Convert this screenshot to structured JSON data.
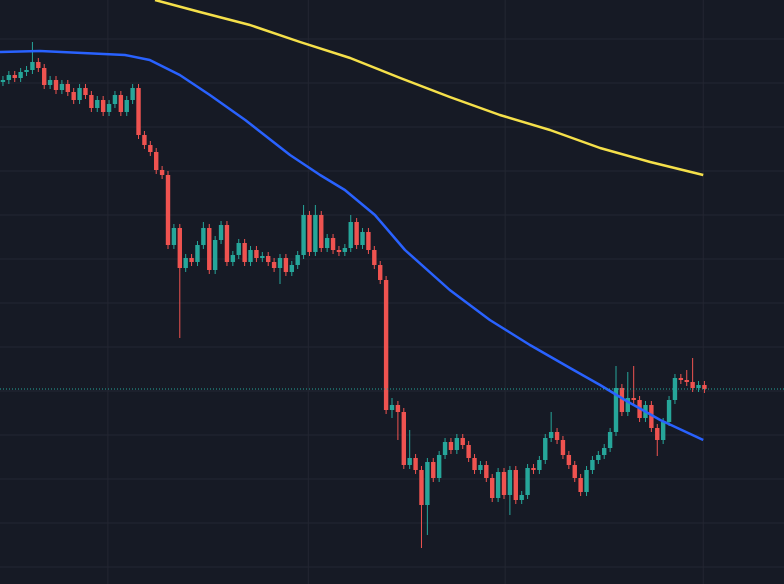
{
  "chart_data": {
    "type": "candlestick",
    "xlim": [
      -0.5,
      132.5
    ],
    "ylim": [
      0,
      584
    ],
    "xticks": [
      17.8,
      51.8,
      85.2,
      118.8
    ],
    "yticks": [
      17,
      61,
      105,
      149,
      193,
      237,
      281,
      325,
      369,
      413,
      457,
      501,
      545
    ],
    "grid": true,
    "background": "#161a25",
    "grid_color": "#232632",
    "up_color": "#26a69a",
    "down_color": "#ef5350",
    "price_line": 195,
    "price_line_color": "#26a69a",
    "open": [
      502,
      504,
      509,
      506,
      512,
      514,
      522,
      516,
      499,
      504,
      494,
      500,
      492,
      484,
      496,
      489,
      476,
      484,
      472,
      480,
      489,
      472,
      484,
      496,
      449,
      439,
      432,
      414,
      409,
      339,
      356,
      316,
      326,
      322,
      339,
      356,
      314,
      344,
      359,
      322,
      329,
      341,
      322,
      334,
      326,
      328,
      322,
      316,
      326,
      312,
      319,
      329,
      369,
      332,
      369,
      336,
      346,
      334,
      332,
      336,
      362,
      339,
      352,
      334,
      319,
      304,
      174,
      179,
      172,
      119,
      126,
      114,
      79,
      122,
      106,
      129,
      142,
      134,
      146,
      139,
      126,
      114,
      119,
      106,
      86,
      112,
      89,
      114,
      84,
      89,
      116,
      114,
      124,
      146,
      152,
      144,
      129,
      119,
      106,
      92,
      114,
      124,
      129,
      136,
      152,
      196,
      172,
      186,
      184,
      166,
      179,
      156,
      144,
      162,
      184,
      206,
      204,
      202,
      196,
      199
    ],
    "high": [
      508,
      513,
      513,
      516,
      518,
      542,
      526,
      520,
      508,
      508,
      504,
      504,
      496,
      500,
      500,
      493,
      488,
      488,
      484,
      493,
      493,
      488,
      500,
      500,
      453,
      443,
      436,
      418,
      413,
      360,
      360,
      330,
      330,
      343,
      362,
      360,
      348,
      363,
      363,
      333,
      345,
      345,
      338,
      338,
      332,
      332,
      326,
      330,
      330,
      323,
      333,
      379,
      373,
      379,
      373,
      350,
      350,
      338,
      340,
      369,
      366,
      356,
      356,
      338,
      323,
      308,
      186,
      183,
      176,
      154,
      130,
      118,
      126,
      126,
      133,
      146,
      146,
      150,
      150,
      143,
      130,
      123,
      123,
      110,
      116,
      116,
      118,
      118,
      93,
      120,
      120,
      128,
      150,
      172,
      156,
      148,
      133,
      123,
      110,
      118,
      128,
      133,
      140,
      156,
      218,
      200,
      212,
      218,
      188,
      183,
      183,
      160,
      166,
      188,
      210,
      210,
      214,
      226,
      203,
      203
    ],
    "low": [
      498,
      500,
      502,
      502,
      508,
      510,
      512,
      495,
      495,
      490,
      490,
      488,
      480,
      480,
      485,
      472,
      472,
      468,
      468,
      476,
      468,
      468,
      480,
      445,
      435,
      428,
      410,
      405,
      335,
      335,
      246,
      312,
      318,
      318,
      335,
      310,
      310,
      340,
      318,
      318,
      325,
      318,
      318,
      322,
      322,
      318,
      312,
      300,
      308,
      308,
      315,
      325,
      328,
      328,
      332,
      332,
      330,
      328,
      328,
      332,
      335,
      335,
      330,
      315,
      300,
      170,
      166,
      144,
      115,
      115,
      110,
      36,
      49,
      102,
      102,
      125,
      130,
      130,
      135,
      122,
      110,
      110,
      102,
      82,
      82,
      85,
      69,
      80,
      80,
      85,
      110,
      110,
      120,
      142,
      140,
      125,
      115,
      102,
      88,
      88,
      110,
      120,
      125,
      132,
      148,
      168,
      168,
      180,
      162,
      162,
      152,
      128,
      140,
      158,
      180,
      200,
      198,
      192,
      192,
      191
    ],
    "close": [
      504,
      509,
      506,
      512,
      514,
      522,
      516,
      499,
      504,
      494,
      500,
      492,
      484,
      496,
      489,
      476,
      484,
      472,
      480,
      489,
      472,
      484,
      496,
      449,
      439,
      432,
      414,
      409,
      339,
      356,
      316,
      326,
      322,
      339,
      356,
      314,
      344,
      359,
      322,
      329,
      341,
      322,
      334,
      326,
      328,
      322,
      316,
      326,
      312,
      319,
      329,
      369,
      332,
      369,
      336,
      346,
      334,
      332,
      336,
      362,
      339,
      352,
      334,
      319,
      304,
      174,
      179,
      172,
      119,
      126,
      114,
      79,
      122,
      106,
      129,
      142,
      134,
      146,
      139,
      126,
      114,
      119,
      106,
      86,
      112,
      89,
      114,
      84,
      89,
      116,
      114,
      124,
      146,
      152,
      144,
      129,
      119,
      106,
      92,
      114,
      124,
      129,
      136,
      152,
      196,
      172,
      186,
      184,
      166,
      179,
      156,
      144,
      162,
      184,
      206,
      204,
      202,
      196,
      199,
      195
    ],
    "lines": [
      {
        "color": "#2962ff",
        "x": [
          -0.5,
          6.3,
          20.7,
          24.9,
          30.0,
          35.1,
          41.1,
          48.7,
          53.8,
          58.0,
          63.1,
          68.2,
          75.8,
          82.6,
          89.4,
          96.2,
          101.3,
          105.5,
          111.5,
          118.8
        ],
        "values": [
          532,
          533,
          529,
          524,
          509,
          489,
          464,
          429,
          409,
          394,
          369,
          334,
          294,
          264,
          239,
          216,
          199,
          184,
          164,
          144
        ]
      },
      {
        "color": "#f5e04a",
        "x": [
          25.8,
          33.4,
          41.9,
          50.4,
          58.9,
          67.4,
          75.8,
          84.3,
          92.8,
          101.3,
          109.8,
          118.8
        ],
        "values": [
          584,
          572,
          559,
          542,
          526,
          506,
          487,
          469,
          454,
          436,
          422,
          409
        ]
      }
    ]
  }
}
